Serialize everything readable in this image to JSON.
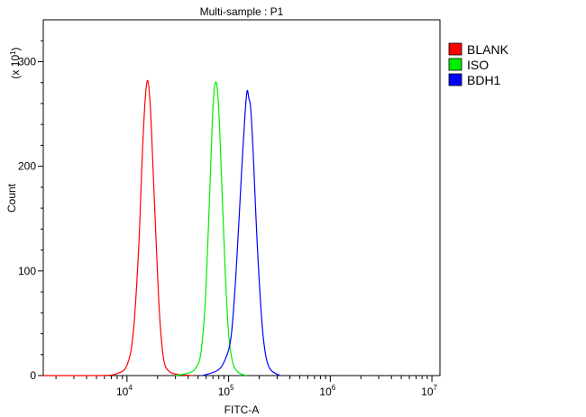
{
  "chart_data": {
    "type": "line",
    "title": "Multi-sample : P1",
    "xlabel": "FITC-A",
    "ylabel": "Count",
    "y_multiplier_label": "(x 10",
    "y_multiplier_exp": "1",
    "y_multiplier_close": ")",
    "x_scale": "log",
    "xlim": [
      1500,
      12000000
    ],
    "ylim": [
      0,
      340
    ],
    "y_ticks": [
      0,
      100,
      200,
      300
    ],
    "y_tick_labels": [
      "0",
      "100",
      "200",
      "300"
    ],
    "x_ticks": [
      10000,
      100000,
      1000000,
      10000000
    ],
    "x_tick_labels": [
      {
        "base": "10",
        "exp": "4"
      },
      {
        "base": "10",
        "exp": "5"
      },
      {
        "base": "10",
        "exp": "6"
      },
      {
        "base": "10",
        "exp": "7"
      }
    ],
    "grid": false,
    "legend_position": "right",
    "series": [
      {
        "name": "BLANK",
        "color": "#ff0000",
        "x": [
          1500,
          5500,
          8000,
          10000,
          11500,
          13000,
          14000,
          15000,
          16000,
          17000,
          18000,
          19500,
          21000,
          23000,
          26000,
          32000,
          45000
        ],
        "y": [
          0,
          0,
          2,
          10,
          40,
          120,
          200,
          260,
          282,
          255,
          200,
          120,
          55,
          15,
          4,
          1,
          0
        ]
      },
      {
        "name": "ISO",
        "color": "#00ee00",
        "x": [
          30000,
          42000,
          48000,
          53000,
          58000,
          62000,
          66000,
          70000,
          74000,
          78000,
          82000,
          87000,
          93000,
          100000,
          110000,
          125000,
          150000
        ],
        "y": [
          0,
          3,
          8,
          20,
          60,
          120,
          190,
          255,
          280,
          270,
          230,
          165,
          95,
          40,
          12,
          3,
          0
        ]
      },
      {
        "name": "BDH1",
        "color": "#0000ff",
        "x": [
          55000,
          78000,
          92000,
          105000,
          115000,
          125000,
          135000,
          145000,
          152000,
          158000,
          165000,
          175000,
          185000,
          200000,
          220000,
          250000,
          320000
        ],
        "y": [
          0,
          5,
          15,
          35,
          80,
          140,
          200,
          250,
          272,
          265,
          255,
          210,
          155,
          90,
          35,
          8,
          0
        ]
      }
    ]
  }
}
